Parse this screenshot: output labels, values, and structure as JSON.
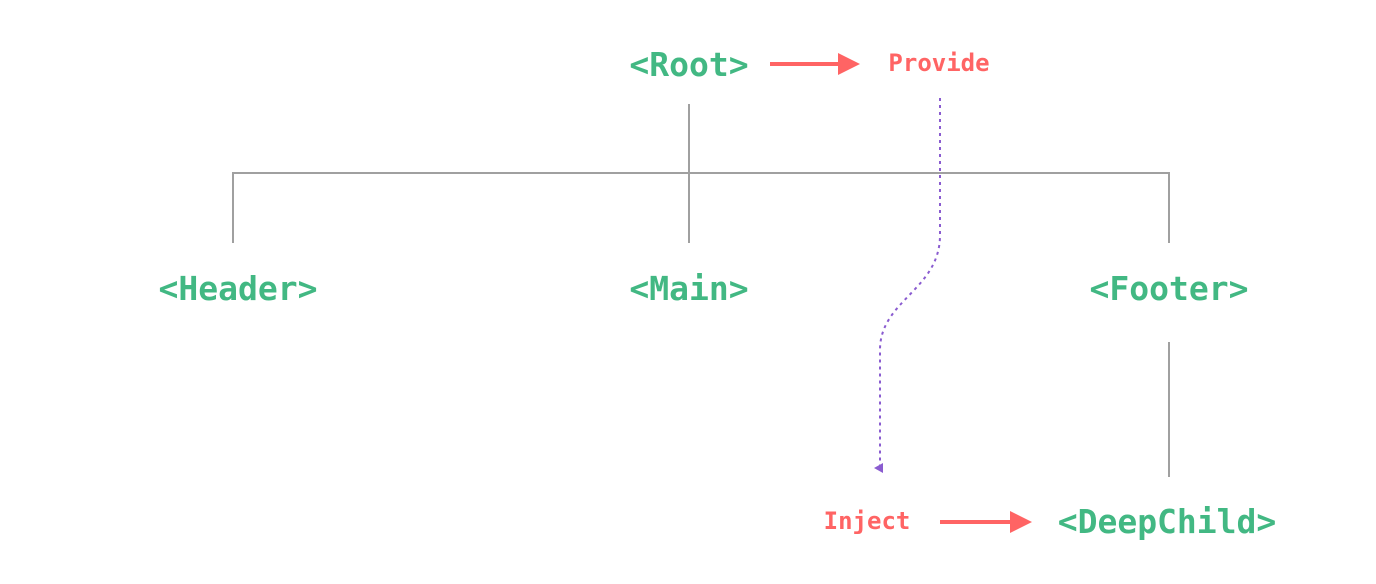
{
  "nodes": {
    "root": "<Root>",
    "header": "<Header>",
    "main": "<Main>",
    "footer": "<Footer>",
    "deep_child": "<DeepChild>"
  },
  "labels": {
    "provide": "Provide",
    "inject": "Inject"
  },
  "colors": {
    "component": "#42b883",
    "provide_inject": "#ff6464",
    "injection_flow": "#8a5cd0",
    "tree_lines": "#a0a0a0"
  }
}
